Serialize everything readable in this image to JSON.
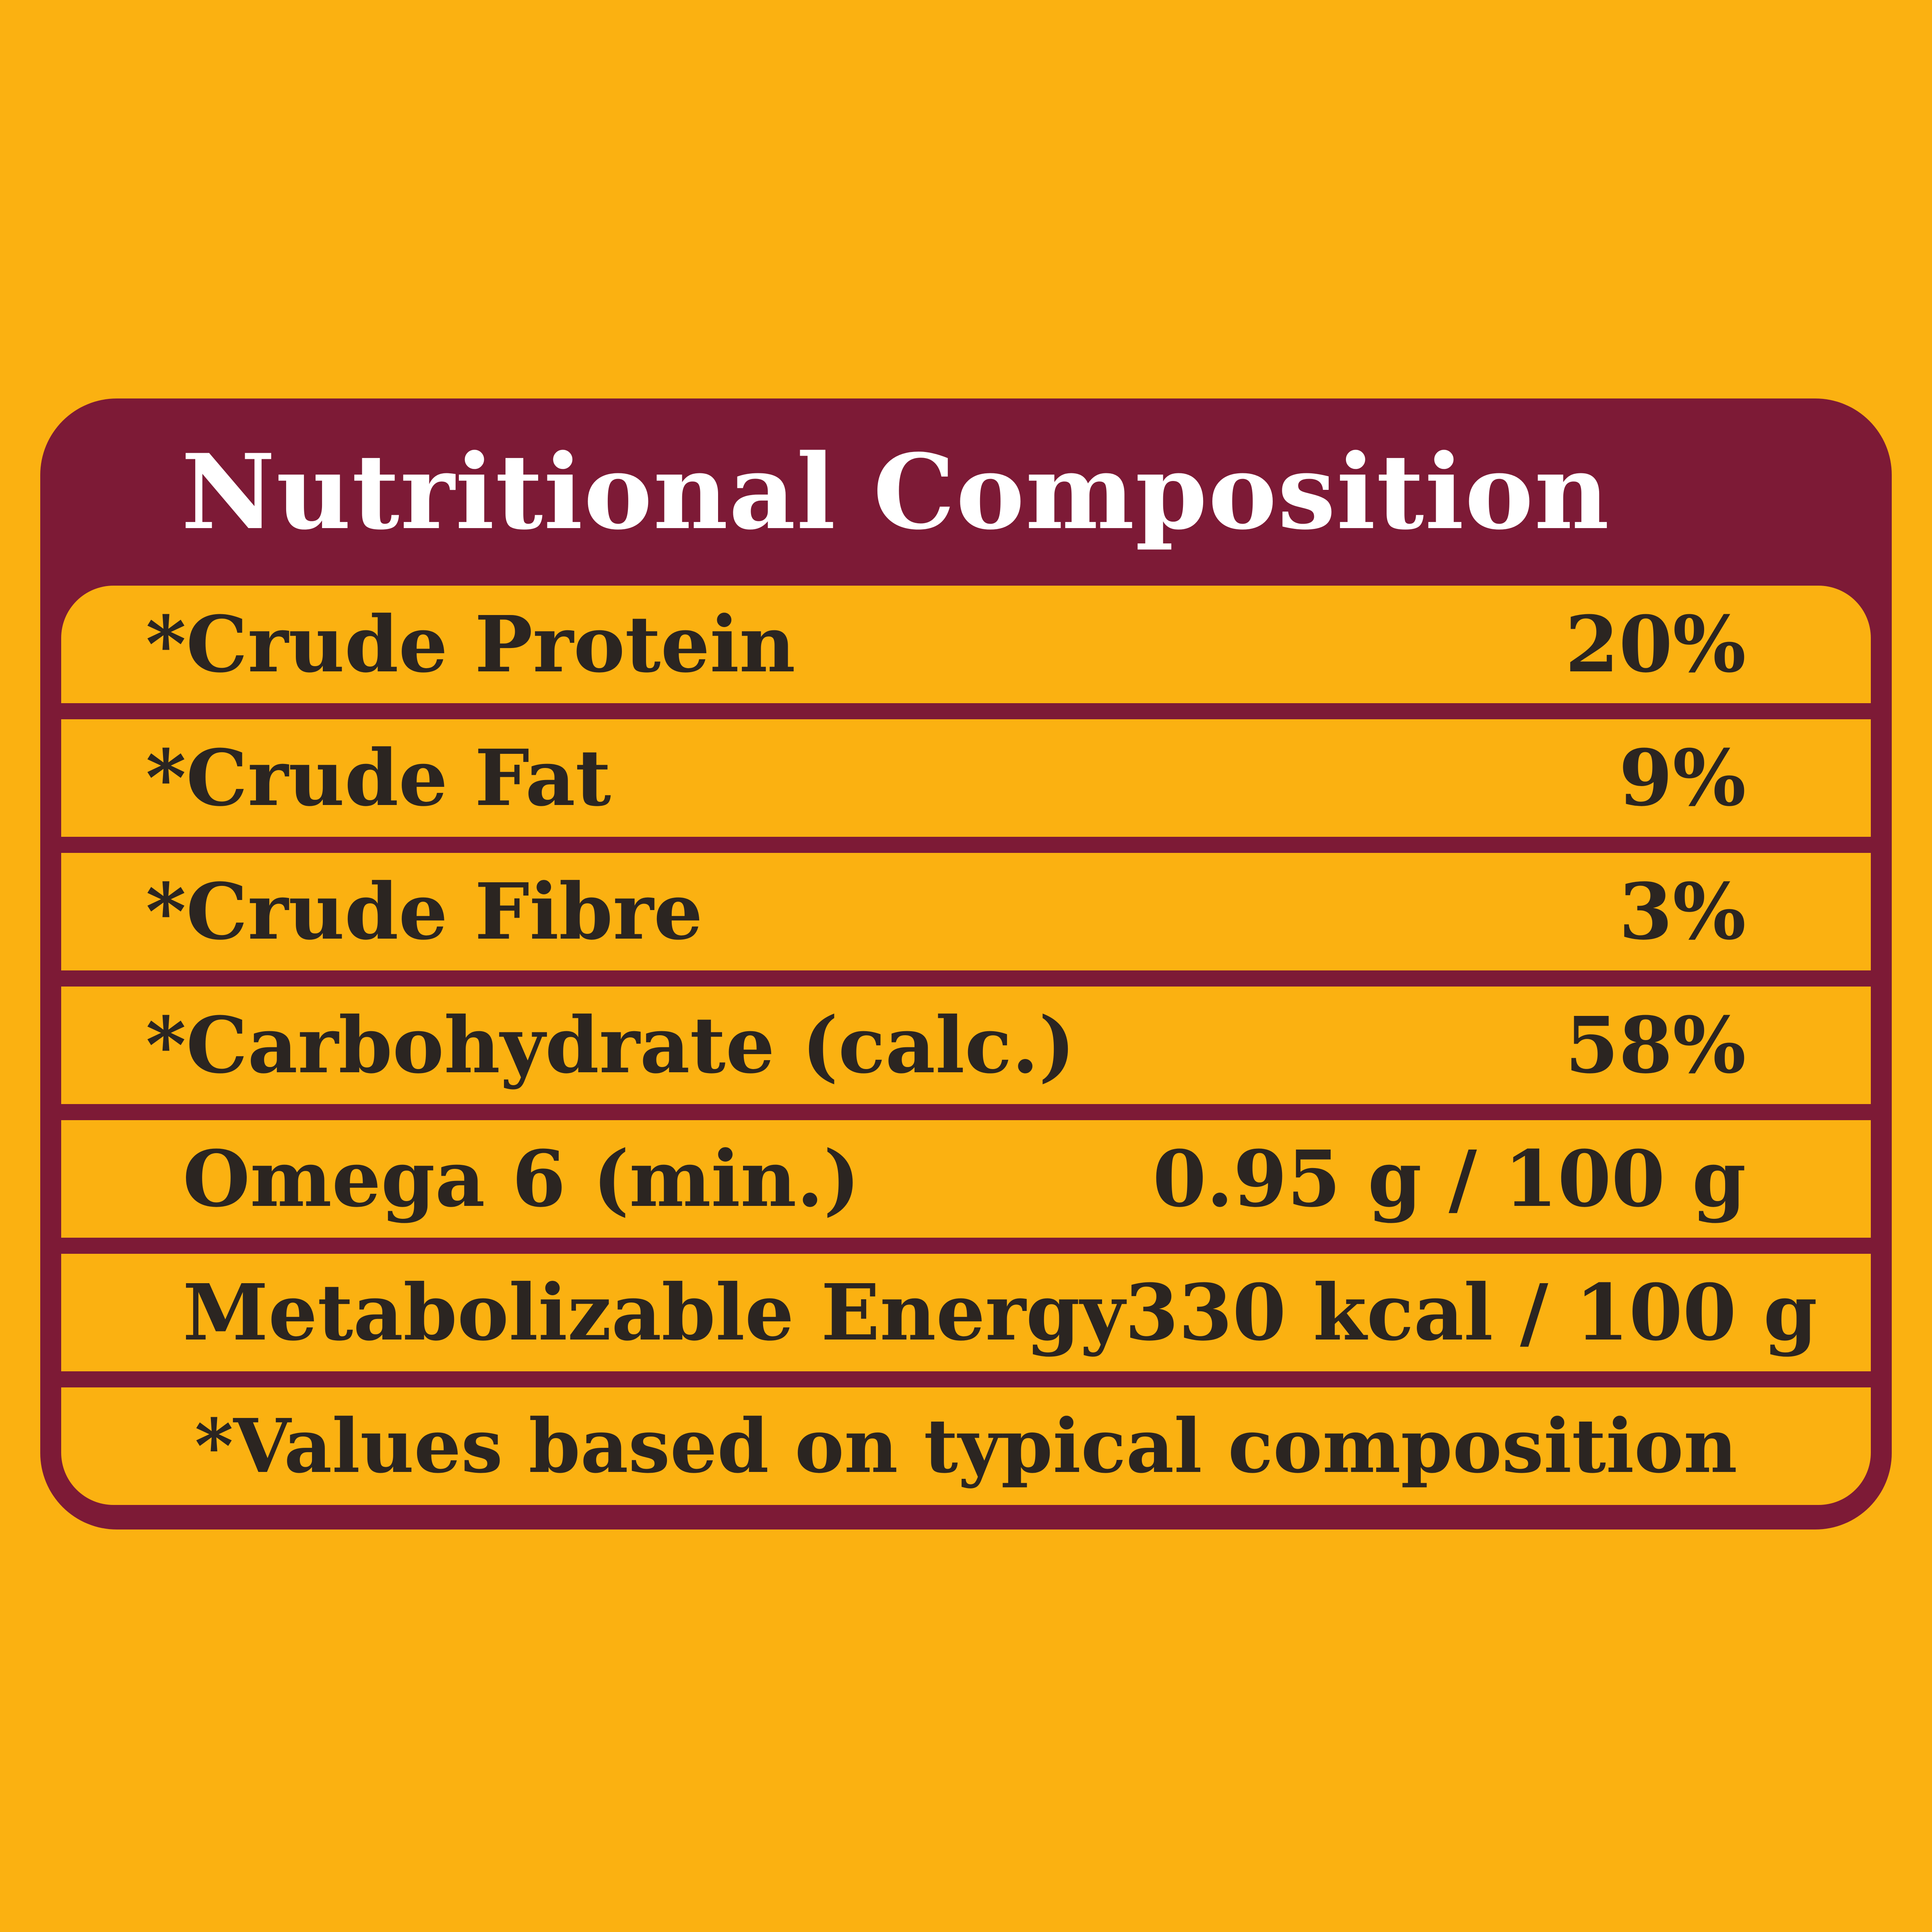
{
  "colors": {
    "background_yellow": "#FBB111",
    "panel_maroon": "#7D1A36",
    "row_yellow": "#FBB111",
    "title_text": "#FFFFFF",
    "row_text": "#2B2521"
  },
  "panel": {
    "title": "Nutritional Composition",
    "rows": [
      {
        "label": "*Crude Protein",
        "value": "20%"
      },
      {
        "label": "*Crude Fat",
        "value": "9%"
      },
      {
        "label": "*Crude Fibre",
        "value": "3%"
      },
      {
        "label": "*Carbohydrate (calc.)",
        "value": "58%"
      },
      {
        "label": "Omega 6 (min.)",
        "value": "0.95 g / 100 g"
      },
      {
        "label": "Metabolizable Energy",
        "value": "330 kcal / 100 g"
      }
    ],
    "footnote": "*Values based on typical composition"
  }
}
